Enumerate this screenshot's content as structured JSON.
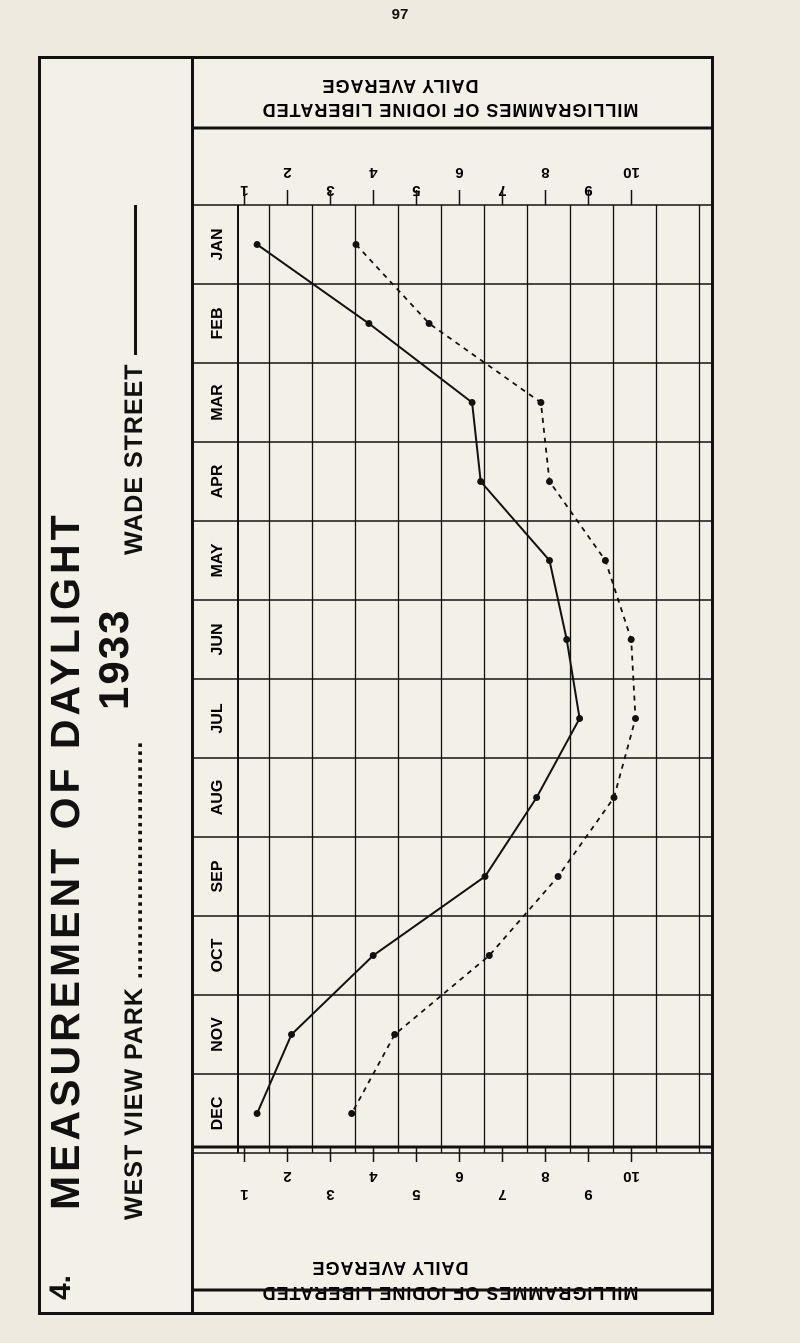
{
  "page_number": "97",
  "figure_number": "4.",
  "title": "MEASUREMENT OF DAYLIGHT",
  "year": "1933",
  "legend": {
    "dashed_label": "WEST VIEW PARK",
    "solid_label": "WADE STREET"
  },
  "top_header": {
    "line1": "DAILY AVERAGE",
    "line2": "MILLIGRAMMES OF IODINE LIBERATED"
  },
  "bottom_header": {
    "line1": "DAILY AVERAGE",
    "line2": "MILLIGRAMMES OF IODINE LIBERATED"
  },
  "colors": {
    "ink": "#111111",
    "paper": "#f3f0e8"
  },
  "chart_data": {
    "type": "line",
    "orientation": "rotated",
    "categories": [
      "JAN",
      "FEB",
      "MAR",
      "APR",
      "MAY",
      "JUN",
      "JUL",
      "AUG",
      "SEP",
      "OCT",
      "NOV",
      "DEC"
    ],
    "value_axis": {
      "label": "MILLIGRAMMES OF IODINE LIBERATED DAILY AVERAGE",
      "range": [
        0,
        10.5
      ],
      "ticks": [
        10,
        9,
        8,
        7,
        6,
        5,
        4,
        3,
        2,
        1
      ]
    },
    "series": [
      {
        "name": "WEST VIEW PARK",
        "style": "dashed",
        "values": [
          3.5,
          5.2,
          7.8,
          8.0,
          9.3,
          9.9,
          10.0,
          9.5,
          8.2,
          6.6,
          4.4,
          3.4
        ]
      },
      {
        "name": "WADE STREET",
        "style": "solid",
        "values": [
          1.2,
          3.8,
          6.2,
          6.4,
          8.0,
          8.4,
          8.7,
          7.7,
          6.5,
          3.9,
          2.0,
          1.2
        ]
      }
    ],
    "grid": true
  }
}
